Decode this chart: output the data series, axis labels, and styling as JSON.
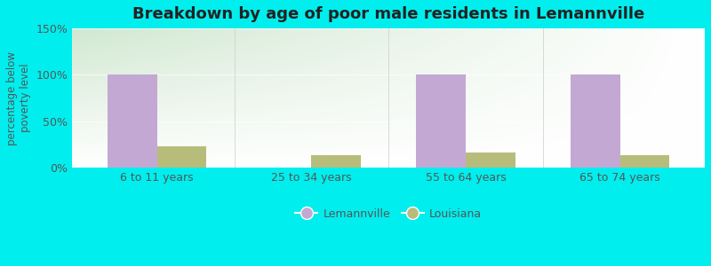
{
  "title": "Breakdown by age of poor male residents in Lemannville",
  "ylabel": "percentage below\npoverty level",
  "categories": [
    "6 to 11 years",
    "25 to 34 years",
    "55 to 64 years",
    "65 to 74 years"
  ],
  "lemannville_values": [
    100,
    0,
    100,
    100
  ],
  "louisiana_values": [
    23,
    13,
    16,
    13
  ],
  "lemannville_color": "#c4a8d4",
  "louisiana_color": "#b8bc7a",
  "ylim": [
    0,
    150
  ],
  "yticks": [
    0,
    50,
    100,
    150
  ],
  "ytick_labels": [
    "0%",
    "50%",
    "100%",
    "150%"
  ],
  "bar_width": 0.32,
  "background_color": "#00eeee",
  "plot_bg_topleft": "#d4ead8",
  "plot_bg_topright": "#f0f8f0",
  "plot_bg_bottomleft": "#e8f5e0",
  "plot_bg_bottomright": "#ffffff",
  "legend_labels": [
    "Lemannville",
    "Louisiana"
  ],
  "title_fontsize": 13,
  "axis_label_fontsize": 8.5,
  "tick_fontsize": 9,
  "gridline_color": "#e0e8d8"
}
